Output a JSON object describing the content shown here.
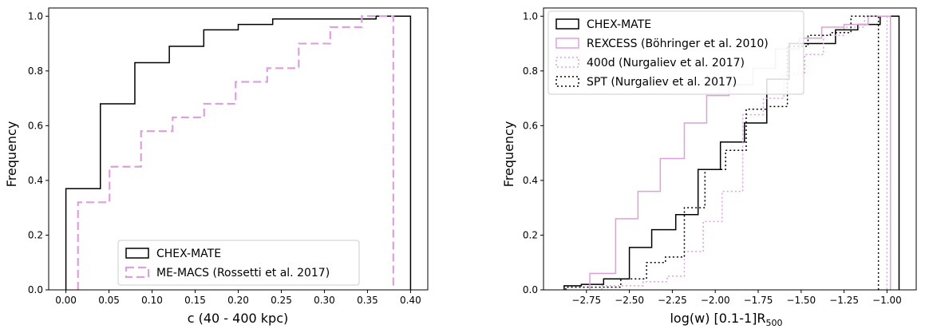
{
  "chart_data": [
    {
      "type": "line",
      "subtype": "cumulative-step-histogram",
      "title": "",
      "xlabel": "c (40 - 400 kpc)",
      "ylabel": "Frequency",
      "xlim": [
        -0.02,
        0.42
      ],
      "ylim": [
        0,
        1.03
      ],
      "xticks": [
        0.0,
        0.05,
        0.1,
        0.15,
        0.2,
        0.25,
        0.3,
        0.35,
        0.4
      ],
      "xtick_labels": [
        "0.00",
        "0.05",
        "0.10",
        "0.15",
        "0.20",
        "0.25",
        "0.30",
        "0.35",
        "0.40"
      ],
      "yticks": [
        0.0,
        0.2,
        0.4,
        0.6,
        0.8,
        1.0
      ],
      "ytick_labels": [
        "0.0",
        "0.2",
        "0.4",
        "0.6",
        "0.8",
        "1.0"
      ],
      "grid": false,
      "legend_position": "lower-right",
      "series": [
        {
          "name": "CHEX-MATE",
          "color": "#000000",
          "style": "solid",
          "edges": [
            0.0,
            0.04,
            0.08,
            0.12,
            0.16,
            0.2,
            0.24,
            0.28,
            0.32,
            0.36,
            0.4
          ],
          "values": [
            0.37,
            0.68,
            0.83,
            0.89,
            0.95,
            0.97,
            0.99,
            0.99,
            0.99,
            1.0
          ]
        },
        {
          "name": "ME-MACS (Rossetti et al. 2017)",
          "color": "#dea0dd",
          "style": "dashed",
          "edges": [
            0.014,
            0.0506,
            0.0872,
            0.1238,
            0.1604,
            0.197,
            0.2336,
            0.2702,
            0.3068,
            0.3434,
            0.38
          ],
          "values": [
            0.32,
            0.45,
            0.58,
            0.63,
            0.68,
            0.76,
            0.81,
            0.9,
            0.96,
            1.0
          ]
        }
      ]
    },
    {
      "type": "line",
      "subtype": "cumulative-step-histogram",
      "title": "",
      "xlabel": "log(w) [0.1-1]R",
      "xlabel_sub": "500",
      "ylabel": "Frequency",
      "xlim": [
        -3.0,
        -0.83
      ],
      "ylim": [
        0,
        1.03
      ],
      "xticks": [
        -2.75,
        -2.5,
        -2.25,
        -2.0,
        -1.75,
        -1.5,
        -1.25,
        -1.0
      ],
      "xtick_labels": [
        "−2.75",
        "−2.50",
        "−2.25",
        "−2.00",
        "−1.75",
        "−1.50",
        "−1.25",
        "−1.00"
      ],
      "yticks": [
        0.0,
        0.2,
        0.4,
        0.6,
        0.8,
        1.0
      ],
      "ytick_labels": [
        "0.0",
        "0.2",
        "0.4",
        "0.6",
        "0.8",
        "1.0"
      ],
      "grid": false,
      "legend_position": "upper-left",
      "series": [
        {
          "name": "CHEX-MATE",
          "color": "#000000",
          "style": "solid",
          "edges": [
            -2.88,
            -2.78,
            -2.65,
            -2.5,
            -2.37,
            -2.23,
            -2.1,
            -1.97,
            -1.83,
            -1.7,
            -1.57,
            -1.44,
            -1.3,
            -1.17,
            -1.04,
            -0.93
          ],
          "values": [
            0.015,
            0.02,
            0.04,
            0.155,
            0.22,
            0.275,
            0.44,
            0.54,
            0.61,
            0.77,
            0.9,
            0.9,
            0.95,
            0.97,
            1.0
          ]
        },
        {
          "name": "REXCESS (Böhringer et al. 2010)",
          "color": "#dea0dd",
          "style": "solid",
          "edges": [
            -2.73,
            -2.58,
            -2.45,
            -2.32,
            -2.18,
            -2.05,
            -1.92,
            -1.78,
            -1.65,
            -1.51,
            -1.38,
            -1.25,
            -1.11,
            -0.98
          ],
          "values": [
            0.06,
            0.26,
            0.36,
            0.48,
            0.61,
            0.71,
            0.75,
            0.81,
            0.88,
            0.92,
            0.96,
            0.97,
            1.0
          ]
        },
        {
          "name": "400d (Nurgaliev et al. 2017)",
          "color": "#dea0dd",
          "style": "dotted",
          "edges": [
            -2.66,
            -2.42,
            -2.28,
            -2.18,
            -2.07,
            -1.96,
            -1.84,
            -1.72,
            -1.6,
            -1.48,
            -1.37,
            -1.25,
            -1.13,
            -1.0
          ],
          "values": [
            0.015,
            0.03,
            0.05,
            0.14,
            0.25,
            0.36,
            0.64,
            0.7,
            0.79,
            0.86,
            0.93,
            0.96,
            1.0
          ]
        },
        {
          "name": "SPT (Nurgaliev et al. 2017)",
          "color": "#000000",
          "style": "dotted",
          "edges": [
            -2.87,
            -2.55,
            -2.4,
            -2.29,
            -2.18,
            -2.06,
            -1.94,
            -1.82,
            -1.7,
            -1.58,
            -1.46,
            -1.33,
            -1.21,
            -1.05
          ],
          "values": [
            0.01,
            0.04,
            0.1,
            0.12,
            0.3,
            0.44,
            0.51,
            0.66,
            0.67,
            0.89,
            0.93,
            0.94,
            1.0
          ]
        }
      ]
    }
  ]
}
